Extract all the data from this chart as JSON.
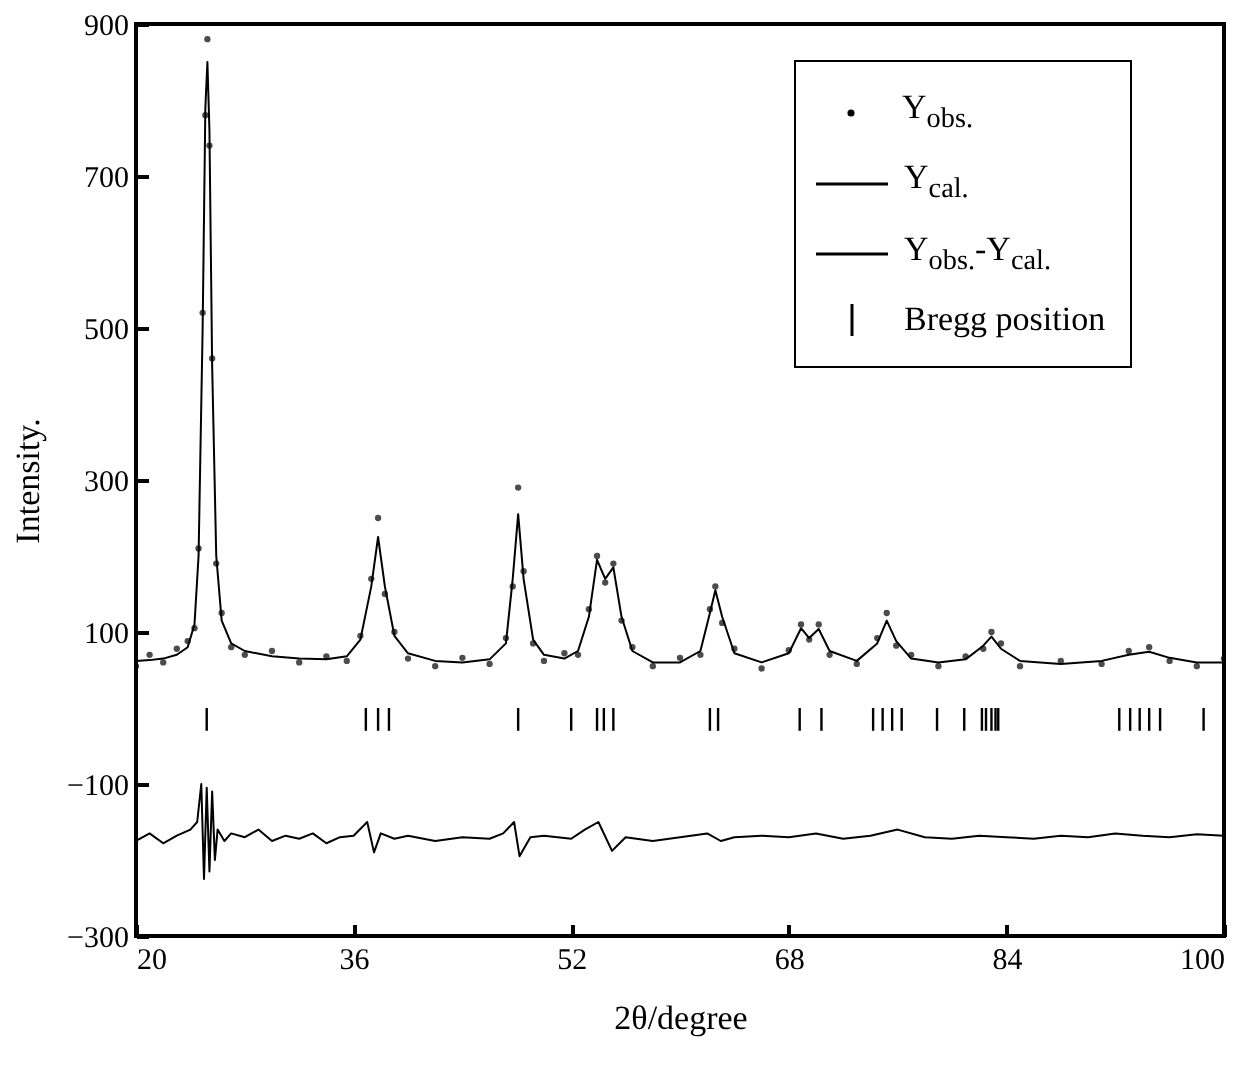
{
  "chart_data": {
    "type": "scatter",
    "xlabel": "2θ/degree",
    "ylabel": "Intensity.",
    "xlim": [
      20,
      100
    ],
    "ylim": [
      -300,
      900
    ],
    "xticks": [
      20,
      36,
      52,
      68,
      84,
      100
    ],
    "yticks": [
      -300,
      -100,
      100,
      300,
      500,
      700,
      900
    ],
    "legend": "top right",
    "series": [
      {
        "name": "Y$_{obs.}$",
        "marker": "circle",
        "color": "#000000",
        "x": [
          20,
          21,
          22,
          23,
          23.8,
          24.3,
          24.6,
          24.9,
          25.1,
          25.25,
          25.4,
          25.6,
          25.9,
          26.3,
          27,
          28,
          30,
          32,
          34,
          35.5,
          36.5,
          37.3,
          37.8,
          38.3,
          39,
          40,
          42,
          44,
          46,
          47.2,
          47.7,
          48.1,
          48.5,
          49.2,
          50,
          51.5,
          52.5,
          53.3,
          53.9,
          54.5,
          55.1,
          55.7,
          56.5,
          58,
          60,
          61.5,
          62.2,
          62.6,
          63.1,
          64,
          66,
          68,
          68.9,
          69.5,
          70.2,
          71,
          73,
          74.5,
          75.2,
          75.9,
          77,
          79,
          81,
          82.3,
          82.9,
          83.6,
          85,
          88,
          91,
          93,
          94.5,
          96,
          98,
          100
        ],
        "values": [
          55,
          70,
          60,
          78,
          88,
          105,
          210,
          520,
          780,
          880,
          740,
          460,
          190,
          125,
          80,
          70,
          75,
          60,
          68,
          62,
          95,
          170,
          250,
          150,
          100,
          65,
          55,
          66,
          58,
          92,
          160,
          290,
          180,
          85,
          62,
          72,
          70,
          130,
          200,
          165,
          190,
          115,
          80,
          55,
          66,
          70,
          130,
          160,
          112,
          78,
          52,
          76,
          110,
          90,
          110,
          70,
          58,
          92,
          125,
          82,
          70,
          55,
          68,
          78,
          100,
          85,
          55,
          62,
          58,
          75,
          80,
          62,
          55,
          65
        ]
      },
      {
        "name": "Y$_{cal.}$",
        "type": "line",
        "color": "#000000",
        "x": [
          20,
          21,
          22,
          23,
          23.8,
          24.3,
          24.6,
          24.9,
          25.1,
          25.25,
          25.4,
          25.6,
          25.9,
          26.3,
          27,
          28,
          30,
          32,
          34,
          35.5,
          36.5,
          37.3,
          37.8,
          38.3,
          39,
          40,
          42,
          44,
          46,
          47.2,
          47.7,
          48.1,
          48.5,
          49.2,
          50,
          51.5,
          52.5,
          53.3,
          53.9,
          54.5,
          55.1,
          55.7,
          56.5,
          58,
          60,
          61.5,
          62.2,
          62.6,
          63.1,
          64,
          66,
          68,
          68.9,
          69.5,
          70.2,
          71,
          73,
          74.5,
          75.2,
          75.9,
          77,
          79,
          81,
          82.3,
          82.9,
          83.6,
          85,
          88,
          91,
          93,
          94.5,
          96,
          98,
          100
        ],
        "values": [
          62,
          63,
          65,
          70,
          80,
          110,
          200,
          500,
          790,
          850,
          760,
          450,
          200,
          115,
          85,
          75,
          68,
          65,
          64,
          68,
          90,
          160,
          225,
          160,
          95,
          72,
          62,
          60,
          64,
          85,
          170,
          255,
          170,
          90,
          70,
          65,
          75,
          120,
          195,
          170,
          185,
          120,
          75,
          60,
          60,
          75,
          125,
          155,
          120,
          72,
          60,
          72,
          105,
          92,
          104,
          75,
          62,
          85,
          115,
          88,
          65,
          60,
          64,
          82,
          94,
          78,
          62,
          58,
          62,
          70,
          74,
          66,
          60,
          60
        ]
      },
      {
        "name": "Y$_{obs.}$-Y$_{cal.}$",
        "type": "line",
        "color": "#000000",
        "x": [
          20,
          21,
          22,
          23,
          24,
          24.5,
          24.8,
          25,
          25.2,
          25.4,
          25.6,
          25.8,
          26,
          26.5,
          27,
          28,
          29,
          30,
          31,
          32,
          33,
          34,
          35,
          36,
          37,
          37.5,
          38,
          39,
          40,
          42,
          44,
          46,
          47,
          47.8,
          48.2,
          49,
          50,
          52,
          53,
          54,
          55,
          56,
          58,
          60,
          62,
          63,
          64,
          66,
          68,
          70,
          72,
          74,
          76,
          78,
          80,
          82,
          84,
          86,
          88,
          90,
          92,
          94,
          96,
          98,
          100
        ],
        "values": [
          -175,
          -165,
          -178,
          -168,
          -160,
          -150,
          -100,
          -225,
          -105,
          -215,
          -110,
          -200,
          -160,
          -175,
          -165,
          -170,
          -160,
          -175,
          -168,
          -172,
          -165,
          -178,
          -170,
          -168,
          -150,
          -190,
          -165,
          -172,
          -168,
          -175,
          -170,
          -172,
          -165,
          -150,
          -195,
          -170,
          -168,
          -172,
          -160,
          -150,
          -188,
          -170,
          -175,
          -170,
          -165,
          -175,
          -170,
          -168,
          -170,
          -165,
          -172,
          -168,
          -160,
          -170,
          -172,
          -168,
          -170,
          -172,
          -168,
          -170,
          -165,
          -168,
          -170,
          -166,
          -168
        ]
      },
      {
        "name": "Bregg position",
        "type": "bar",
        "color": "#000000",
        "x": [
          25.2,
          36.9,
          37.8,
          38.6,
          48.1,
          52.0,
          53.9,
          54.4,
          55.1,
          62.2,
          62.8,
          68.8,
          70.4,
          74.2,
          74.9,
          75.6,
          76.3,
          78.9,
          80.9,
          82.2,
          82.5,
          82.9,
          83.2,
          83.4,
          92.3,
          93.1,
          93.8,
          94.5,
          95.3,
          98.5
        ],
        "values": [
          -30,
          -30,
          -30,
          -30,
          -30,
          -30,
          -30,
          -30,
          -30,
          -30,
          -30,
          -30,
          -30,
          -30,
          -30,
          -30,
          -30,
          -30,
          -30,
          -30,
          -30,
          -30,
          -30,
          -30,
          -30,
          -30,
          -30,
          -30,
          -30,
          -30
        ]
      }
    ]
  }
}
